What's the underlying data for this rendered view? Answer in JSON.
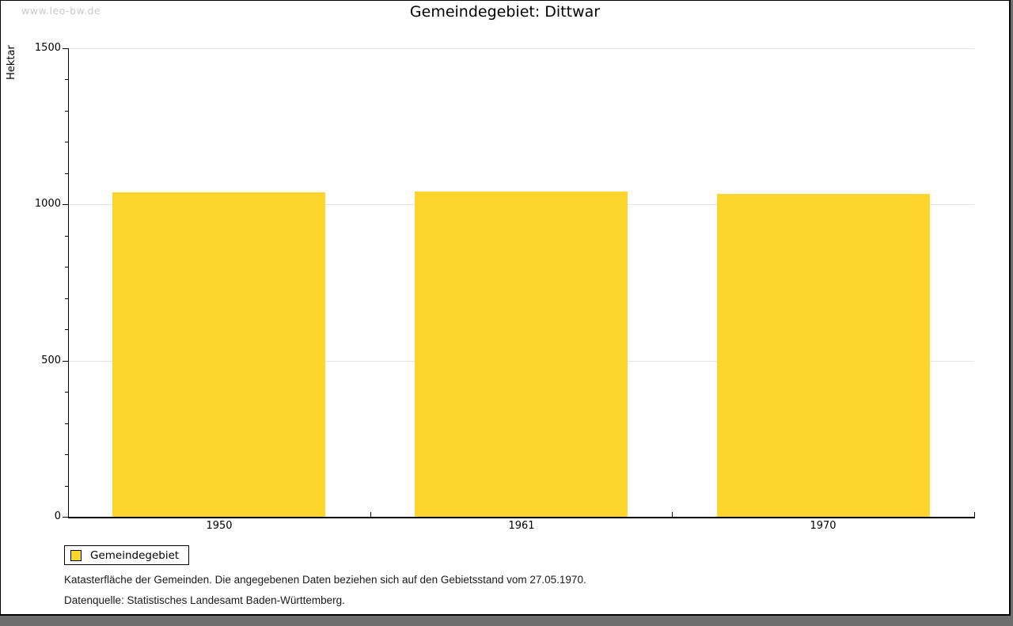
{
  "page": {
    "watermark": "www.leo-bw.de",
    "title": "Gemeindegebiet: Dittwar",
    "footer_note": "Katasterfläche der Gemeinden. Die angegebenen Daten beziehen sich auf den Gebietsstand vom 27.05.1970.",
    "footer_source": "Datenquelle: Statistisches Landesamt Baden-Württemberg."
  },
  "legend": {
    "label": "Gemeindegebiet"
  },
  "chart_data": {
    "type": "bar",
    "title": "Gemeindegebiet: Dittwar",
    "categories": [
      "1950",
      "1961",
      "1970"
    ],
    "series": [
      {
        "name": "Gemeindegebiet",
        "values": [
          1040,
          1042,
          1035
        ]
      }
    ],
    "xlabel": "",
    "ylabel": "Hektar",
    "ylim": [
      0,
      1500
    ],
    "ytick_major": 500,
    "ytick_minor": 100,
    "yticks": [
      {
        "value": 0,
        "label": "0"
      },
      {
        "value": 500,
        "label": "500"
      },
      {
        "value": 1000,
        "label": "1000"
      },
      {
        "value": 1500,
        "label": "1500"
      }
    ],
    "grid": "horizontal-major",
    "legend_position": "bottom-left"
  },
  "colors": {
    "bar": "#FDD52C",
    "grid": "#e3e3e3",
    "axis": "#000000",
    "watermark": "#c9c9c9",
    "shadow": "#6e6e6e"
  }
}
